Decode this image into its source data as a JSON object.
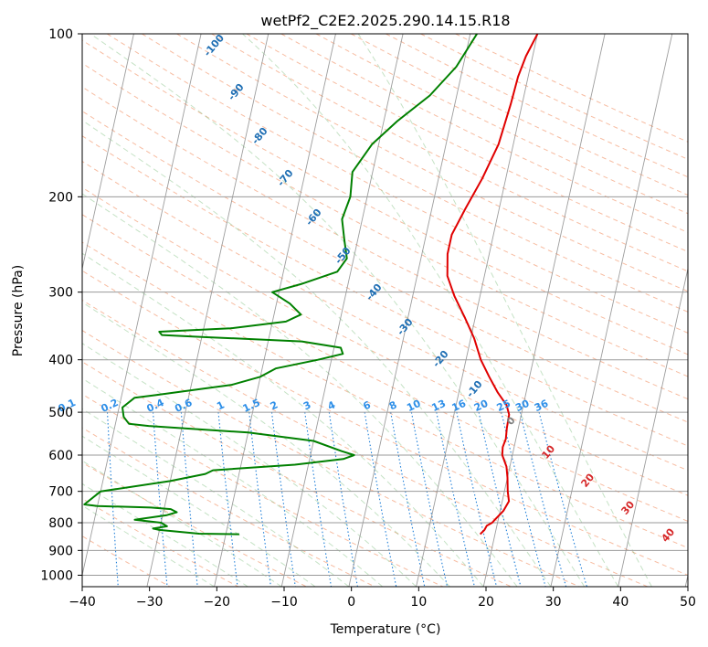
{
  "chart_data": {
    "type": "line",
    "title": "wetPf2_C2E2.2025.290.14.15.R18",
    "xlabel": "Temperature (°C)",
    "ylabel": "Pressure (hPa)",
    "xlim": [
      -40,
      50
    ],
    "ylim": [
      1050,
      100
    ],
    "y_scale": "log",
    "x_ticks": [
      -40,
      -30,
      -20,
      -10,
      0,
      10,
      20,
      30,
      40,
      50
    ],
    "y_ticks": [
      100,
      200,
      300,
      400,
      500,
      600,
      700,
      800,
      900,
      1000
    ],
    "grid": true,
    "series": [
      {
        "role": "temperature",
        "color": "#e00000",
        "points": [
          [
            10,
            100
          ],
          [
            9,
            110
          ],
          [
            8.5,
            120
          ],
          [
            8.3,
            135
          ],
          [
            7.8,
            160
          ],
          [
            6.5,
            185
          ],
          [
            5,
            210
          ],
          [
            3.8,
            235
          ],
          [
            3.8,
            255
          ],
          [
            4.5,
            280
          ],
          [
            6.2,
            305
          ],
          [
            8.5,
            335
          ],
          [
            10.5,
            365
          ],
          [
            12.2,
            400
          ],
          [
            14,
            430
          ],
          [
            15.8,
            460
          ],
          [
            17.5,
            485
          ],
          [
            18.2,
            505
          ],
          [
            18.3,
            535
          ],
          [
            18.5,
            560
          ],
          [
            18.3,
            580
          ],
          [
            18.5,
            600
          ],
          [
            19.5,
            630
          ],
          [
            20,
            660
          ],
          [
            20.5,
            700
          ],
          [
            21,
            730
          ],
          [
            20.5,
            760
          ],
          [
            19.5,
            790
          ],
          [
            19.2,
            800
          ],
          [
            18.5,
            810
          ],
          [
            18.3,
            825
          ],
          [
            17.8,
            840
          ]
        ]
      },
      {
        "role": "dewpoint",
        "color": "#008000",
        "points": [
          [
            1,
            100
          ],
          [
            -1,
            115
          ],
          [
            -4,
            130
          ],
          [
            -8,
            145
          ],
          [
            -11,
            160
          ],
          [
            -13,
            180
          ],
          [
            -12.5,
            200
          ],
          [
            -13,
            220
          ],
          [
            -12,
            240
          ],
          [
            -11,
            260
          ],
          [
            -12,
            275
          ],
          [
            -17,
            290
          ],
          [
            -21,
            300
          ],
          [
            -18,
            315
          ],
          [
            -16,
            330
          ],
          [
            -18,
            340
          ],
          [
            -26,
            350
          ],
          [
            -36.5,
            355
          ],
          [
            -36,
            360
          ],
          [
            -30,
            363
          ],
          [
            -15,
            370
          ],
          [
            -9,
            380
          ],
          [
            -8.5,
            390
          ],
          [
            -12,
            400
          ],
          [
            -18,
            415
          ],
          [
            -20,
            430
          ],
          [
            -24,
            445
          ],
          [
            -35,
            465
          ],
          [
            -38,
            470
          ],
          [
            -39.5,
            490
          ],
          [
            -39,
            510
          ],
          [
            -38,
            525
          ],
          [
            -35,
            530
          ],
          [
            -20,
            545
          ],
          [
            -10,
            565
          ],
          [
            -5.5,
            590
          ],
          [
            -3.5,
            600
          ],
          [
            -5,
            610
          ],
          [
            -12,
            625
          ],
          [
            -24,
            640
          ],
          [
            -25,
            650
          ],
          [
            -30,
            670
          ],
          [
            -40,
            700
          ],
          [
            -42,
            740
          ],
          [
            -40,
            745
          ],
          [
            -32,
            750
          ],
          [
            -29,
            755
          ],
          [
            -28,
            765
          ],
          [
            -29.5,
            775
          ],
          [
            -34,
            790
          ],
          [
            -30,
            800
          ],
          [
            -29,
            812
          ],
          [
            -31,
            820
          ],
          [
            -30,
            825
          ],
          [
            -24,
            838
          ],
          [
            -18,
            840
          ]
        ]
      }
    ],
    "dry_adiabat_labels": [
      "-100",
      "-90",
      "-80",
      "-70",
      "-60",
      "-50",
      "-40",
      "-30",
      "-20",
      "-10",
      "0",
      "10",
      "20",
      "30",
      "40"
    ],
    "mixing_ratio_labels": [
      "0.1",
      "0.2",
      "0.4",
      "0.6",
      "1",
      "1.5",
      "2",
      "3",
      "4",
      "6",
      "8",
      "10",
      "13",
      "16",
      "20",
      "25",
      "30",
      "36"
    ]
  }
}
